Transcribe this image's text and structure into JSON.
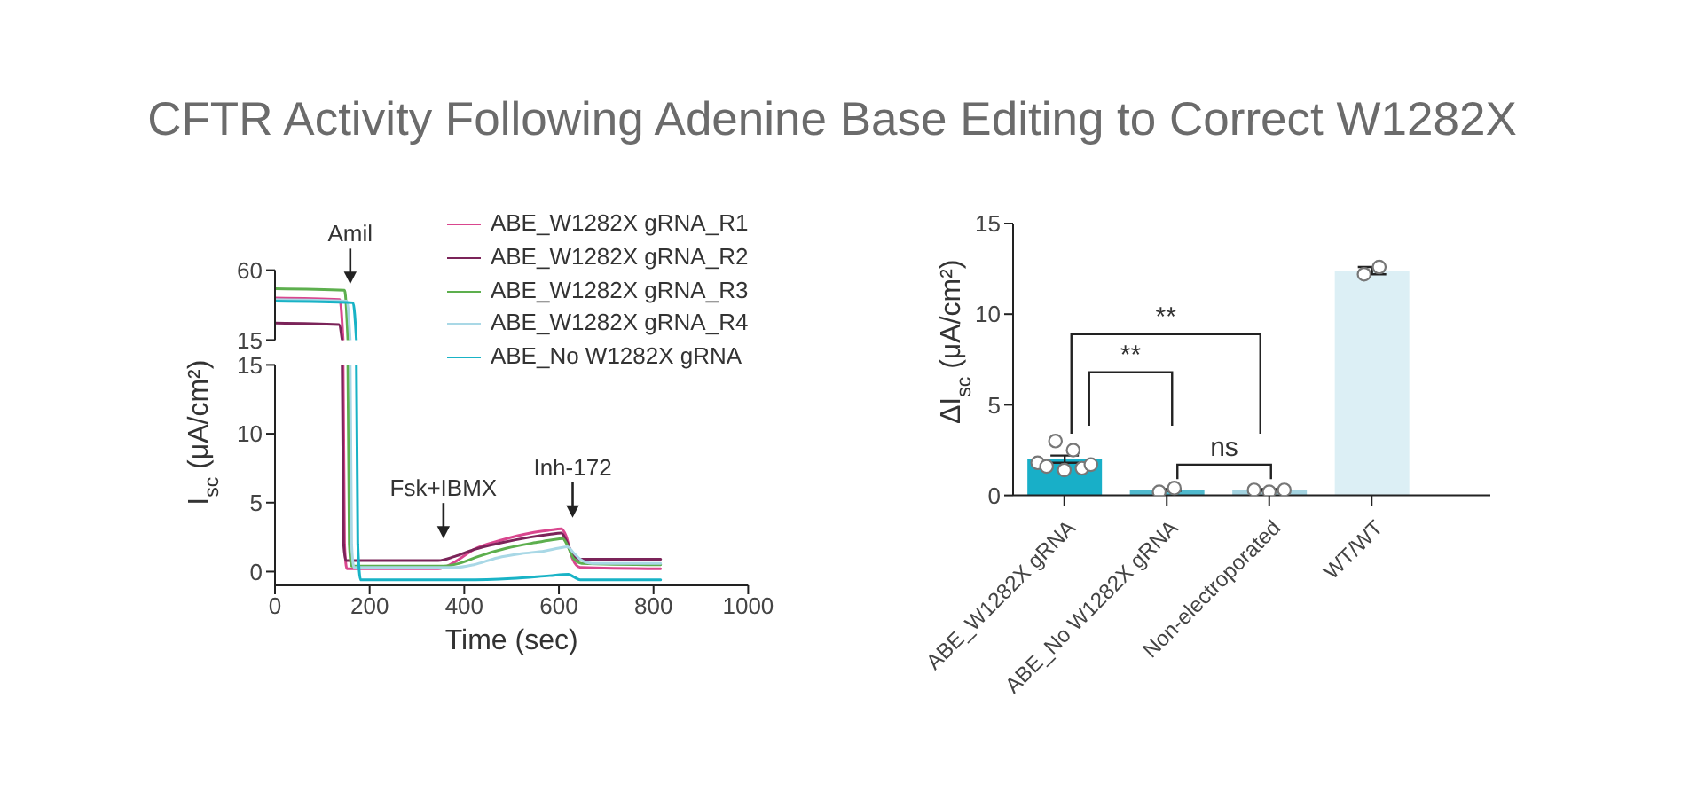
{
  "chart_data": [
    {
      "type": "line",
      "title": "CFTR Activity Following Adenine Base Editing to Correct W1282X",
      "xlim": [
        0,
        1000
      ],
      "ylim": [
        15,
        60
      ],
      "yticks": [
        15,
        60
      ],
      "tick_labels": "y",
      "legend": "top right",
      "series": [
        {
          "name": "ABE_W1282X gRNA_R1",
          "color": "#d9468e",
          "x": [
            0,
            137,
            144
          ],
          "values": [
            42,
            41,
            15
          ]
        },
        {
          "name": "ABE_W1282X gRNA_R2",
          "color": "#7b2459",
          "x": [
            0,
            135,
            142
          ],
          "values": [
            26,
            25,
            15
          ]
        },
        {
          "name": "ABE_W1282X gRNA_R3",
          "color": "#5daf4e",
          "x": [
            0,
            147,
            154
          ],
          "values": [
            48,
            47,
            15
          ]
        },
        {
          "name": "ABE_W1282X gRNA_R4",
          "color": "#a9d8e6",
          "x": [
            0,
            152,
            159
          ],
          "values": [
            41,
            40,
            15
          ]
        },
        {
          "name": "ABE_No W1282X gRNA",
          "color": "#19b3c6",
          "x": [
            0,
            165,
            172
          ],
          "values": [
            40,
            39,
            15
          ]
        }
      ],
      "annotations": [
        {
          "text": "Amil",
          "x": 159,
          "y": 51
        }
      ]
    },
    {
      "type": "line",
      "xlabel": "Time (sec)",
      "ylabel": "I$_{sc}$ (μA/cm²)",
      "xlim": [
        0,
        1000
      ],
      "xticks": [
        0,
        200,
        400,
        600,
        800,
        1000
      ],
      "ylim": [
        -1,
        15
      ],
      "yticks": [
        0,
        5,
        10,
        15
      ],
      "series": [
        {
          "color": "#d9468e",
          "x": [
            144,
            147,
            152,
            345,
            380,
            420,
            480,
            540,
            580,
            605,
            615,
            628,
            645,
            815
          ],
          "values": [
            15,
            2,
            0.2,
            0.2,
            0.7,
            1.6,
            2.3,
            2.8,
            3.0,
            3.1,
            2.6,
            1.0,
            0.3,
            0.2
          ]
        },
        {
          "color": "#7b2459",
          "x": [
            142,
            145,
            150,
            345,
            380,
            420,
            480,
            540,
            580,
            605,
            615,
            628,
            645,
            815
          ],
          "values": [
            15,
            2,
            0.8,
            0.8,
            1.1,
            1.6,
            2.1,
            2.5,
            2.7,
            2.8,
            2.3,
            1.3,
            0.9,
            0.9
          ]
        },
        {
          "color": "#5daf4e",
          "x": [
            154,
            157,
            162,
            355,
            390,
            430,
            490,
            550,
            585,
            608,
            618,
            630,
            648,
            815
          ],
          "values": [
            15,
            2,
            0.4,
            0.4,
            0.6,
            1.1,
            1.7,
            2.1,
            2.3,
            2.4,
            1.9,
            1.0,
            0.6,
            0.5
          ]
        },
        {
          "color": "#a9d8e6",
          "x": [
            159,
            162,
            167,
            380,
            420,
            470,
            520,
            570,
            600,
            618,
            630,
            645,
            670,
            815
          ],
          "values": [
            15,
            2,
            0.3,
            0.3,
            0.5,
            1.0,
            1.3,
            1.5,
            1.7,
            1.8,
            1.4,
            0.9,
            0.6,
            0.6
          ]
        },
        {
          "color": "#19b3c6",
          "x": [
            172,
            175,
            181,
            400,
            500,
            580,
            620,
            632,
            645,
            815
          ],
          "values": [
            15,
            2,
            -0.6,
            -0.6,
            -0.5,
            -0.3,
            -0.2,
            -0.4,
            -0.6,
            -0.6
          ]
        }
      ],
      "annotations": [
        "Fsk+IBMX",
        "Inh-172"
      ]
    },
    {
      "type": "bar",
      "categories": [
        "ABE_W1282X gRNA",
        "ABE_No W1282X gRNA",
        "Non-electroporated",
        "WT/WT"
      ],
      "ylabel": "ΔI$_{sc}$ (μA/cm²)",
      "ylim": [
        0,
        15
      ],
      "yticks": [
        0,
        5,
        10,
        15
      ],
      "series": [
        {
          "type": "bar",
          "values": [
            2.0,
            0.3,
            0.3,
            12.4
          ],
          "colors": [
            "#18afc8",
            "#4fb9cd",
            "#a3d3e0",
            "#dceff5"
          ],
          "errors": [
            0.2,
            0.05,
            0.05,
            0.2
          ]
        },
        {
          "type": "scatter",
          "color": "#777777",
          "marker": "circle",
          "x": [
            "ABE_W1282X gRNA",
            "ABE_W1282X gRNA",
            "ABE_W1282X gRNA",
            "ABE_W1282X gRNA",
            "ABE_W1282X gRNA",
            "ABE_W1282X gRNA",
            "ABE_W1282X gRNA",
            "ABE_No W1282X gRNA",
            "ABE_No W1282X gRNA",
            "Non-electroporated",
            "Non-electroporated",
            "Non-electroporated",
            "WT/WT",
            "WT/WT"
          ],
          "values": [
            1.8,
            1.6,
            3.0,
            1.4,
            2.5,
            1.5,
            1.7,
            0.2,
            0.4,
            0.3,
            0.2,
            0.3,
            12.2,
            12.6
          ]
        }
      ],
      "annotations": [
        "**",
        "**",
        "ns"
      ]
    }
  ]
}
